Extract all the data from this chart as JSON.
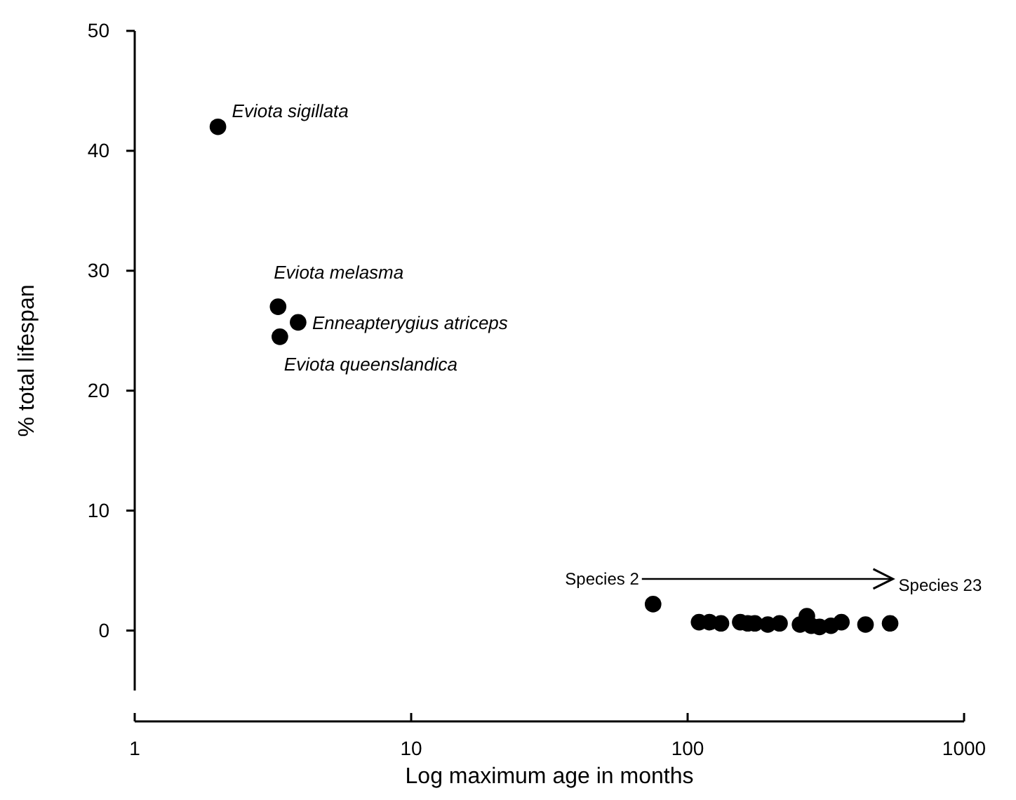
{
  "chart_data": {
    "type": "scatter",
    "xlabel": "Log maximum age in months",
    "ylabel": "% total lifespan",
    "log": "x",
    "xlim": [
      1,
      1000
    ],
    "xticks": [
      1,
      10,
      100,
      1000
    ],
    "ylim": [
      -5,
      50
    ],
    "yticks": [
      0,
      10,
      20,
      30,
      40,
      50
    ],
    "grid": false,
    "marker": "circle",
    "series": [
      {
        "color": "#000000",
        "x": [
          2,
          3.3,
          3.9,
          3.35,
          75,
          110,
          120,
          132,
          155,
          165,
          175,
          195,
          215,
          255,
          270,
          280,
          300,
          330,
          360,
          440,
          540
        ],
        "values": [
          42,
          27,
          25.7,
          24.5,
          2.2,
          0.7,
          0.7,
          0.6,
          0.7,
          0.6,
          0.6,
          0.5,
          0.6,
          0.5,
          1.2,
          0.4,
          0.3,
          0.4,
          0.7,
          0.5,
          0.6
        ]
      }
    ],
    "annotations": [
      {
        "text": "Eviota sigillata",
        "x": 2,
        "y": 42
      },
      {
        "text": "Eviota melasma",
        "x": 3.3,
        "y": 27
      },
      {
        "text": "Enneapterygius atriceps",
        "x": 3.9,
        "y": 25.7
      },
      {
        "text": "Eviota queenslandica",
        "x": 3.35,
        "y": 24.5
      },
      {
        "text": "Species 2",
        "x": 75,
        "y": 2.2
      },
      {
        "text": "Species 23",
        "x": 540,
        "y": 0.6
      }
    ]
  }
}
